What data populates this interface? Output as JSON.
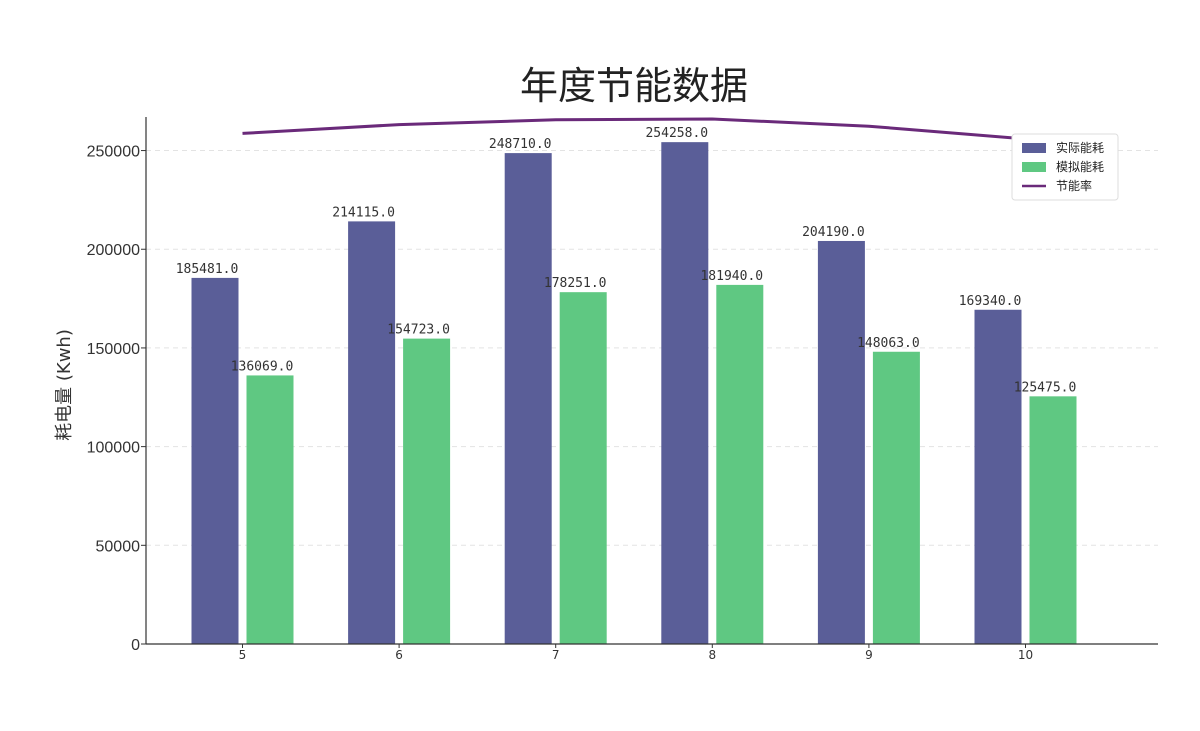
{
  "chart_data": {
    "type": "bar",
    "title": "年度节能数据",
    "ylabel": "耗电量 (Kwh)",
    "xlabel": "",
    "categories": [
      "5",
      "6",
      "7",
      "8",
      "9",
      "10"
    ],
    "ylim": [
      0,
      267000
    ],
    "yticks": [
      0,
      50000,
      100000,
      150000,
      200000,
      250000
    ],
    "grid": true,
    "legend_position": "top-right",
    "series": [
      {
        "name": "实际能耗",
        "color": "#5a5e98",
        "values": [
          185481.0,
          214115.0,
          248710.0,
          254258.0,
          204190.0,
          169340.0
        ],
        "labels": [
          "185481.0",
          "214115.0",
          "248710.0",
          "254258.0",
          "204190.0",
          "169340.0"
        ]
      },
      {
        "name": "模拟能耗",
        "color": "#5fc882",
        "values": [
          136069.0,
          154723.0,
          178251.0,
          181940.0,
          148063.0,
          125475.0
        ],
        "labels": [
          "136069.0",
          "154723.0",
          "178251.0",
          "181940.0",
          "148063.0",
          "125475.0"
        ]
      }
    ],
    "line_series": {
      "name": "节能率",
      "color": "#6a2a7a",
      "values": [
        0.266,
        0.277,
        0.283,
        0.284,
        0.275,
        0.259
      ]
    }
  }
}
